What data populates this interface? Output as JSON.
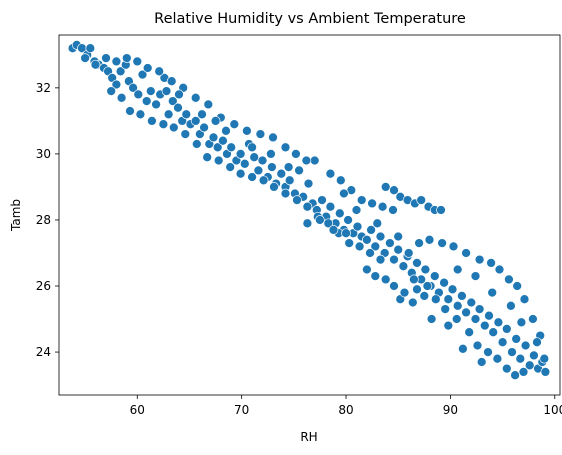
{
  "chart_data": {
    "type": "scatter",
    "title": "Relative Humidity vs Ambient Temperature",
    "xlabel": "RH",
    "ylabel": "Tamb",
    "xlim": [
      52.5,
      100.5
    ],
    "ylim": [
      22.7,
      33.6
    ],
    "xticks": [
      60,
      70,
      80,
      90,
      100
    ],
    "yticks": [
      24,
      26,
      28,
      30,
      32
    ],
    "grid": false,
    "marker_color": "#1f77b4",
    "marker_edge_color": "#ffffff",
    "points": [
      [
        53.8,
        33.2
      ],
      [
        54.2,
        33.3
      ],
      [
        54.7,
        33.2
      ],
      [
        55.2,
        33.0
      ],
      [
        55.5,
        33.2
      ],
      [
        55.9,
        32.8
      ],
      [
        56.3,
        32.7
      ],
      [
        56.8,
        32.6
      ],
      [
        57.2,
        32.5
      ],
      [
        57.6,
        32.3
      ],
      [
        58.0,
        32.1
      ],
      [
        58.4,
        32.5
      ],
      [
        58.9,
        32.7
      ],
      [
        59.2,
        32.2
      ],
      [
        59.6,
        32.0
      ],
      [
        60.1,
        31.8
      ],
      [
        60.5,
        32.4
      ],
      [
        60.9,
        31.6
      ],
      [
        61.3,
        31.9
      ],
      [
        61.8,
        31.5
      ],
      [
        62.2,
        31.8
      ],
      [
        62.6,
        32.3
      ],
      [
        63.0,
        31.2
      ],
      [
        63.4,
        31.6
      ],
      [
        63.9,
        31.4
      ],
      [
        64.3,
        31.0
      ],
      [
        64.7,
        31.2
      ],
      [
        65.1,
        30.9
      ],
      [
        65.6,
        31.0
      ],
      [
        66.0,
        30.6
      ],
      [
        66.4,
        30.8
      ],
      [
        66.9,
        30.3
      ],
      [
        67.3,
        30.5
      ],
      [
        67.7,
        30.2
      ],
      [
        68.2,
        30.4
      ],
      [
        68.6,
        30.0
      ],
      [
        69.0,
        30.2
      ],
      [
        69.5,
        29.8
      ],
      [
        69.9,
        30.0
      ],
      [
        70.3,
        29.7
      ],
      [
        70.7,
        30.3
      ],
      [
        71.2,
        29.9
      ],
      [
        71.6,
        29.5
      ],
      [
        72.0,
        29.8
      ],
      [
        72.5,
        29.3
      ],
      [
        72.9,
        29.6
      ],
      [
        73.3,
        29.1
      ],
      [
        73.8,
        29.4
      ],
      [
        74.2,
        29.0
      ],
      [
        74.6,
        29.2
      ],
      [
        75.1,
        28.8
      ],
      [
        75.5,
        29.5
      ],
      [
        75.9,
        28.7
      ],
      [
        76.4,
        29.1
      ],
      [
        76.8,
        28.5
      ],
      [
        77.2,
        28.3
      ],
      [
        77.7,
        28.6
      ],
      [
        78.1,
        28.1
      ],
      [
        78.5,
        28.4
      ],
      [
        79.0,
        27.9
      ],
      [
        79.4,
        28.2
      ],
      [
        79.8,
        27.7
      ],
      [
        80.2,
        28.0
      ],
      [
        80.7,
        27.6
      ],
      [
        81.1,
        27.8
      ],
      [
        81.5,
        27.5
      ],
      [
        82.0,
        27.4
      ],
      [
        82.4,
        27.7
      ],
      [
        82.8,
        27.2
      ],
      [
        83.3,
        27.5
      ],
      [
        83.7,
        27.0
      ],
      [
        84.2,
        27.3
      ],
      [
        84.6,
        26.8
      ],
      [
        85.0,
        27.1
      ],
      [
        85.5,
        26.6
      ],
      [
        85.9,
        26.9
      ],
      [
        86.3,
        26.4
      ],
      [
        86.8,
        26.7
      ],
      [
        87.2,
        26.2
      ],
      [
        87.6,
        26.5
      ],
      [
        88.1,
        26.0
      ],
      [
        88.5,
        26.3
      ],
      [
        88.9,
        25.8
      ],
      [
        89.4,
        26.1
      ],
      [
        89.8,
        25.6
      ],
      [
        90.2,
        25.9
      ],
      [
        90.7,
        25.4
      ],
      [
        91.1,
        25.7
      ],
      [
        91.5,
        25.2
      ],
      [
        92.0,
        25.5
      ],
      [
        92.4,
        25.0
      ],
      [
        92.8,
        25.3
      ],
      [
        93.3,
        24.8
      ],
      [
        93.7,
        25.1
      ],
      [
        94.1,
        24.6
      ],
      [
        94.6,
        24.9
      ],
      [
        95.0,
        24.3
      ],
      [
        95.4,
        24.7
      ],
      [
        95.9,
        24.0
      ],
      [
        96.3,
        24.4
      ],
      [
        96.7,
        23.8
      ],
      [
        97.2,
        24.2
      ],
      [
        97.6,
        23.6
      ],
      [
        98.0,
        23.9
      ],
      [
        98.4,
        23.5
      ],
      [
        98.8,
        23.7
      ],
      [
        99.1,
        23.4
      ],
      [
        98.6,
        24.5
      ],
      [
        97.9,
        25.0
      ],
      [
        97.1,
        25.6
      ],
      [
        96.4,
        26.0
      ],
      [
        95.6,
        26.2
      ],
      [
        94.7,
        26.5
      ],
      [
        93.9,
        26.7
      ],
      [
        92.8,
        26.8
      ],
      [
        91.5,
        27.0
      ],
      [
        90.3,
        27.2
      ],
      [
        89.2,
        27.3
      ],
      [
        88.0,
        27.4
      ],
      [
        87.0,
        27.3
      ],
      [
        86.0,
        27.0
      ],
      [
        85.2,
        25.6
      ],
      [
        86.4,
        25.5
      ],
      [
        87.5,
        25.7
      ],
      [
        88.6,
        25.6
      ],
      [
        89.5,
        25.3
      ],
      [
        90.6,
        25.0
      ],
      [
        91.8,
        24.6
      ],
      [
        92.6,
        24.2
      ],
      [
        93.6,
        24.0
      ],
      [
        94.5,
        23.8
      ],
      [
        95.4,
        23.5
      ],
      [
        96.2,
        23.3
      ],
      [
        97.0,
        23.4
      ],
      [
        82.0,
        26.5
      ],
      [
        82.8,
        26.3
      ],
      [
        83.8,
        26.2
      ],
      [
        84.6,
        26.0
      ],
      [
        85.6,
        25.8
      ],
      [
        86.8,
        25.9
      ],
      [
        87.8,
        26.0
      ],
      [
        83.8,
        29.0
      ],
      [
        84.6,
        28.9
      ],
      [
        85.2,
        28.7
      ],
      [
        85.9,
        28.6
      ],
      [
        86.6,
        28.5
      ],
      [
        87.2,
        28.6
      ],
      [
        87.9,
        28.4
      ],
      [
        88.5,
        28.3
      ],
      [
        89.1,
        28.3
      ],
      [
        84.5,
        28.3
      ],
      [
        83.5,
        28.4
      ],
      [
        82.5,
        28.5
      ],
      [
        81.5,
        28.6
      ],
      [
        80.5,
        28.9
      ],
      [
        79.5,
        29.2
      ],
      [
        78.5,
        29.4
      ],
      [
        77.0,
        29.8
      ],
      [
        76.2,
        29.8
      ],
      [
        75.2,
        30.0
      ],
      [
        74.2,
        30.2
      ],
      [
        73.0,
        30.5
      ],
      [
        71.8,
        30.6
      ],
      [
        70.5,
        30.7
      ],
      [
        69.3,
        30.9
      ],
      [
        68.0,
        31.1
      ],
      [
        66.8,
        31.5
      ],
      [
        65.6,
        31.7
      ],
      [
        64.4,
        32.0
      ],
      [
        63.3,
        32.2
      ],
      [
        62.1,
        32.5
      ],
      [
        61.0,
        32.6
      ],
      [
        60.0,
        32.8
      ],
      [
        59.0,
        32.9
      ],
      [
        58.0,
        32.8
      ],
      [
        57.0,
        32.9
      ],
      [
        56.0,
        32.7
      ],
      [
        55.0,
        32.9
      ],
      [
        59.3,
        31.3
      ],
      [
        60.3,
        31.2
      ],
      [
        61.4,
        31.0
      ],
      [
        62.5,
        30.9
      ],
      [
        63.5,
        30.8
      ],
      [
        64.6,
        30.6
      ],
      [
        65.7,
        30.3
      ],
      [
        66.7,
        29.9
      ],
      [
        67.8,
        29.8
      ],
      [
        68.9,
        29.6
      ],
      [
        69.9,
        29.4
      ],
      [
        71.0,
        29.3
      ],
      [
        72.1,
        29.2
      ],
      [
        73.1,
        29.0
      ],
      [
        74.2,
        28.8
      ],
      [
        75.3,
        28.6
      ],
      [
        76.3,
        28.4
      ],
      [
        77.3,
        28.1
      ],
      [
        78.3,
        27.9
      ],
      [
        79.3,
        27.6
      ],
      [
        80.3,
        27.3
      ],
      [
        81.3,
        27.2
      ],
      [
        82.3,
        27.0
      ],
      [
        83.3,
        26.8
      ],
      [
        77.5,
        28.0
      ],
      [
        76.3,
        27.9
      ],
      [
        78.8,
        27.7
      ],
      [
        80.0,
        27.6
      ],
      [
        57.5,
        31.9
      ],
      [
        58.5,
        31.7
      ],
      [
        62.8,
        31.9
      ],
      [
        64.0,
        31.8
      ],
      [
        66.2,
        31.2
      ],
      [
        67.5,
        31.0
      ],
      [
        68.5,
        30.7
      ],
      [
        71.0,
        30.2
      ],
      [
        72.8,
        30.0
      ],
      [
        74.5,
        29.6
      ],
      [
        79.8,
        28.8
      ],
      [
        81.0,
        28.3
      ],
      [
        83.0,
        27.9
      ],
      [
        85.0,
        27.5
      ],
      [
        86.5,
        26.2
      ],
      [
        88.2,
        25.0
      ],
      [
        89.8,
        24.8
      ],
      [
        91.2,
        24.1
      ],
      [
        93.0,
        23.7
      ],
      [
        96.8,
        24.9
      ],
      [
        98.3,
        24.3
      ],
      [
        99.0,
        23.8
      ],
      [
        95.8,
        25.4
      ],
      [
        94.0,
        25.8
      ],
      [
        92.4,
        26.3
      ],
      [
        90.7,
        26.5
      ]
    ]
  }
}
